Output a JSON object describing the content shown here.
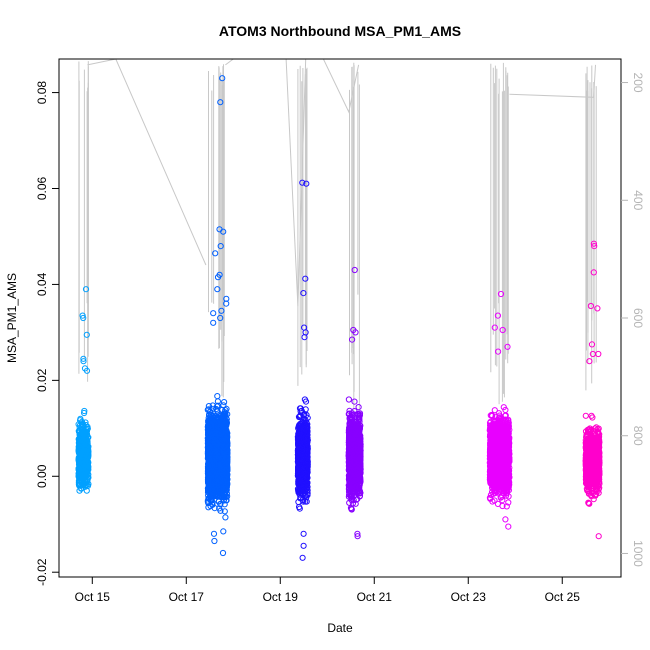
{
  "chart_data": {
    "type": "scatter",
    "title": "ATOM3 Northbound MSA_PM1_AMS",
    "xlabel": "Date",
    "ylabel": "MSA_PM1_AMS",
    "x_range_days": [
      "2016-10-14T07:00",
      "2016-10-26T06:00"
    ],
    "ylim": [
      -0.021,
      0.087
    ],
    "y_ticks": [
      -0.02,
      0.0,
      0.02,
      0.04,
      0.06,
      0.08
    ],
    "y_tick_labels": [
      "-0.02",
      "0.00",
      "0.02",
      "0.04",
      "0.06",
      "0.08"
    ],
    "x_ticks": [
      "2016-10-15",
      "2016-10-17",
      "2016-10-19",
      "2016-10-21",
      "2016-10-23",
      "2016-10-25"
    ],
    "x_tick_labels": [
      "Oct 15",
      "Oct 17",
      "Oct 19",
      "Oct 21",
      "Oct 23",
      "Oct 25"
    ],
    "right_axis": {
      "reversed": true,
      "lim": [
        160,
        1040
      ],
      "ticks": [
        200,
        400,
        600,
        800,
        1000
      ],
      "tick_labels": [
        "200",
        "400",
        "600",
        "800",
        "1000"
      ],
      "color": "#b4b4b4"
    },
    "series": [
      {
        "start": "2016-10-14T17:00",
        "end": "2016-10-14T22:00",
        "color": "#00a0ff",
        "center": 0.004,
        "spread": 0.004,
        "min": -0.005,
        "max": 0.039,
        "n": 700,
        "outliers": [
          0.039,
          0.0335,
          0.033,
          0.0295,
          0.0245,
          0.024,
          0.0225,
          0.022
        ]
      },
      {
        "start": "2016-10-17T11:00",
        "end": "2016-10-17T21:00",
        "color": "#0060ff",
        "center": 0.004,
        "spread": 0.0055,
        "min": -0.016,
        "max": 0.083,
        "n": 2400,
        "outliers": [
          0.083,
          0.078,
          0.0515,
          0.051,
          0.048,
          0.0465,
          0.042,
          0.0415,
          0.039,
          0.037,
          0.036,
          0.0345,
          0.034,
          0.033,
          0.032,
          -0.0135,
          -0.016,
          -0.012,
          -0.0115
        ]
      },
      {
        "start": "2016-10-19T09:00",
        "end": "2016-10-19T14:00",
        "color": "#2010ff",
        "center": 0.004,
        "spread": 0.005,
        "min": -0.017,
        "max": 0.061,
        "n": 1100,
        "outliers": [
          0.0612,
          0.061,
          0.0412,
          0.0382,
          0.031,
          0.03,
          0.029,
          -0.017,
          -0.0145,
          -0.012
        ]
      },
      {
        "start": "2016-10-20T11:00",
        "end": "2016-10-20T17:00",
        "color": "#8800ff",
        "center": 0.004,
        "spread": 0.005,
        "min": -0.0125,
        "max": 0.043,
        "n": 1400,
        "outliers": [
          0.043,
          0.0305,
          0.03,
          0.0285,
          -0.0125,
          -0.012
        ]
      },
      {
        "start": "2016-10-23T11:00",
        "end": "2016-10-23T21:00",
        "color": "#e800ff",
        "center": 0.004,
        "spread": 0.005,
        "min": -0.0105,
        "max": 0.038,
        "n": 1600,
        "outliers": [
          0.038,
          0.0335,
          0.031,
          0.0305,
          0.027,
          0.026,
          -0.0105,
          -0.009
        ]
      },
      {
        "start": "2016-10-25T12:00",
        "end": "2016-10-25T19:00",
        "color": "#ff00cc",
        "center": 0.003,
        "spread": 0.004,
        "min": -0.0125,
        "max": 0.0485,
        "n": 1200,
        "outliers": [
          0.0485,
          0.048,
          0.0425,
          0.0355,
          0.035,
          0.0275,
          0.0255,
          0.0255,
          0.024,
          -0.0125
        ]
      }
    ],
    "altitude_track": {
      "color": "#c8c8c8",
      "segments": [
        {
          "points": [
            [
              "2016-10-14T21:30",
              170
            ],
            [
              "2016-10-15T12:00",
              160
            ],
            [
              "2016-10-17T10:00",
              510
            ]
          ]
        },
        {
          "points": [
            [
              "2016-10-17T20:00",
              170
            ],
            [
              "2016-10-18T00:00",
              160
            ]
          ]
        },
        {
          "points": [
            [
              "2016-10-19T03:00",
              160
            ],
            [
              "2016-10-19T09:00",
              580
            ],
            [
              "2016-10-19T13:00",
              160
            ]
          ]
        },
        {
          "points": [
            [
              "2016-10-19T22:00",
              160
            ],
            [
              "2016-10-20T11:00",
              250
            ],
            [
              "2016-10-20T16:00",
              170
            ]
          ]
        },
        {
          "points": [
            [
              "2016-10-23T21:00",
              220
            ],
            [
              "2016-10-25T16:00",
              225
            ],
            [
              "2016-10-25T17:00",
              170
            ]
          ]
        }
      ]
    }
  }
}
